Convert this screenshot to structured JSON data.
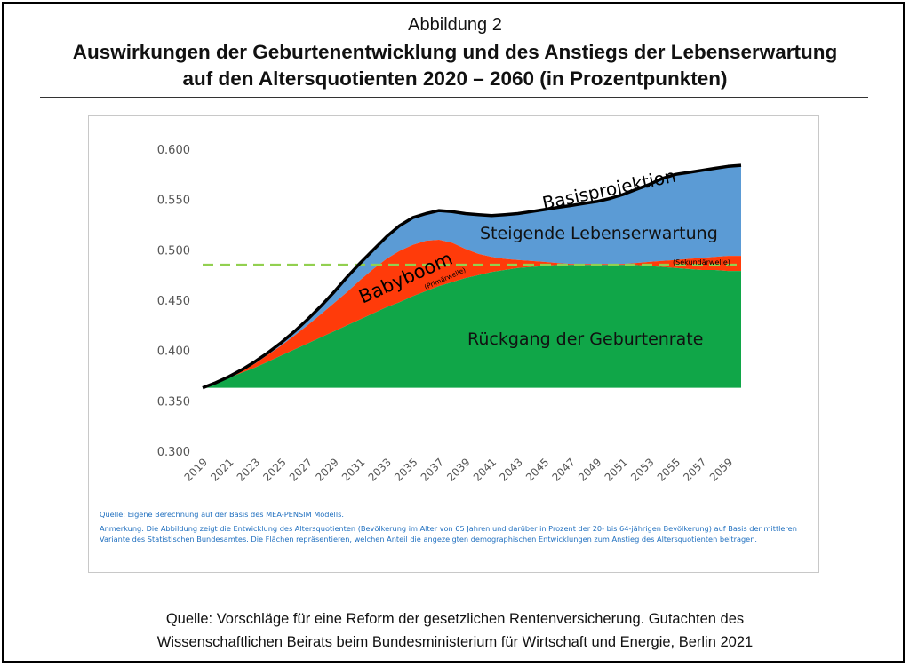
{
  "figure": {
    "label": "Abbildung 2",
    "title_line1": "Auswirkungen der Geburtenentwicklung und des Anstiegs der Lebenserwartung",
    "title_line2": "auf den Altersquotienten 2020 – 2060 (in Prozentpunkten)"
  },
  "notes": {
    "quelle": "Quelle: Eigene Berechnung auf der Basis des MEA-PENSIM Modells.",
    "anmerkung": "Anmerkung: Die Abbildung zeigt die Entwicklung des Altersquotienten (Bevölkerung im Alter von 65 Jahren und darüber in Prozent der 20- bis 64-jährigen Bevölkerung) auf Basis der mittleren Variante des Statistischen Bundesamtes. Die Flächen repräsentieren, welchen Anteil die angezeigten demographischen Entwicklungen zum Anstieg des Altersquotienten beitragen."
  },
  "source": {
    "line1": "Quelle: Vorschläge für eine Reform der gesetzlichen Rentenversicherung. Gutachten des",
    "line2": "Wissenschaftlichen Beirats beim Bundesministerium für Wirtschaft und Energie, Berlin 2021"
  },
  "colors": {
    "geburtenrate": "#10a648",
    "babyboom": "#ff3b0a",
    "lebenserwartung": "#5b9bd5",
    "basis_line": "#000000",
    "reference_line": "#92d050"
  },
  "chart_data": {
    "type": "area",
    "title": "",
    "xlabel": "",
    "ylabel": "",
    "ylim": [
      0.3,
      0.6
    ],
    "yticks": [
      0.3,
      0.35,
      0.4,
      0.45,
      0.5,
      0.55,
      0.6
    ],
    "ytick_labels": [
      "0.300",
      "0.350",
      "0.400",
      "0.450",
      "0.500",
      "0.550",
      "0.600"
    ],
    "baseline": 0.363,
    "x": [
      2019,
      2020,
      2021,
      2022,
      2023,
      2024,
      2025,
      2026,
      2027,
      2028,
      2029,
      2030,
      2031,
      2032,
      2033,
      2034,
      2035,
      2036,
      2037,
      2038,
      2039,
      2040,
      2041,
      2042,
      2043,
      2044,
      2045,
      2046,
      2047,
      2048,
      2049,
      2050,
      2051,
      2052,
      2053,
      2054,
      2055,
      2056,
      2057,
      2058,
      2059,
      2060
    ],
    "xtick_labels": [
      "2019",
      "2021",
      "2023",
      "2025",
      "2027",
      "2029",
      "2031",
      "2033",
      "2035",
      "2037",
      "2039",
      "2041",
      "2043",
      "2045",
      "2047",
      "2049",
      "2051",
      "2053",
      "2055",
      "2057",
      "2059"
    ],
    "series": [
      {
        "name": "Rückgang der Geburtenrate",
        "values": [
          0.363,
          0.368,
          0.373,
          0.378,
          0.383,
          0.389,
          0.395,
          0.401,
          0.407,
          0.413,
          0.419,
          0.425,
          0.431,
          0.437,
          0.443,
          0.448,
          0.454,
          0.459,
          0.464,
          0.468,
          0.472,
          0.475,
          0.478,
          0.48,
          0.482,
          0.483,
          0.484,
          0.485,
          0.485,
          0.485,
          0.485,
          0.485,
          0.485,
          0.485,
          0.484,
          0.483,
          0.482,
          0.481,
          0.48,
          0.48,
          0.479,
          0.479
        ]
      },
      {
        "name": "Babyboom",
        "values": [
          0.363,
          0.368,
          0.374,
          0.38,
          0.387,
          0.396,
          0.405,
          0.415,
          0.425,
          0.436,
          0.447,
          0.458,
          0.47,
          0.481,
          0.491,
          0.499,
          0.505,
          0.509,
          0.51,
          0.507,
          0.501,
          0.496,
          0.493,
          0.491,
          0.49,
          0.489,
          0.488,
          0.487,
          0.486,
          0.486,
          0.486,
          0.486,
          0.486,
          0.487,
          0.488,
          0.489,
          0.49,
          0.491,
          0.492,
          0.493,
          0.494,
          0.494
        ]
      },
      {
        "name": "Steigende Lebenserwartung",
        "values": [
          0.363,
          0.368,
          0.374,
          0.381,
          0.389,
          0.398,
          0.408,
          0.419,
          0.431,
          0.444,
          0.458,
          0.473,
          0.487,
          0.5,
          0.513,
          0.524,
          0.532,
          0.536,
          0.539,
          0.538,
          0.536,
          0.535,
          0.534,
          0.535,
          0.536,
          0.538,
          0.54,
          0.542,
          0.544,
          0.546,
          0.548,
          0.551,
          0.555,
          0.56,
          0.565,
          0.571,
          0.575,
          0.577,
          0.579,
          0.581,
          0.583,
          0.584
        ]
      }
    ],
    "basis_line": {
      "name": "Basisprojektion",
      "values": [
        0.363,
        0.368,
        0.374,
        0.381,
        0.389,
        0.398,
        0.408,
        0.419,
        0.431,
        0.444,
        0.458,
        0.473,
        0.487,
        0.5,
        0.513,
        0.524,
        0.532,
        0.536,
        0.539,
        0.538,
        0.536,
        0.535,
        0.534,
        0.535,
        0.536,
        0.538,
        0.54,
        0.542,
        0.544,
        0.546,
        0.548,
        0.551,
        0.555,
        0.56,
        0.565,
        0.571,
        0.575,
        0.577,
        0.579,
        0.581,
        0.583,
        0.584
      ]
    },
    "reference_line": {
      "value": 0.485,
      "style": "dashed"
    },
    "annotations": {
      "basisprojektion": "Basisprojektion",
      "lebenserwartung": "Steigende Lebenserwartung",
      "babyboom": "Babyboom",
      "primaerwelle": "(Primärwelle)",
      "sekundaerwelle": "(Sekundärwelle)",
      "geburtenrate": "Rückgang der Geburtenrate"
    }
  }
}
